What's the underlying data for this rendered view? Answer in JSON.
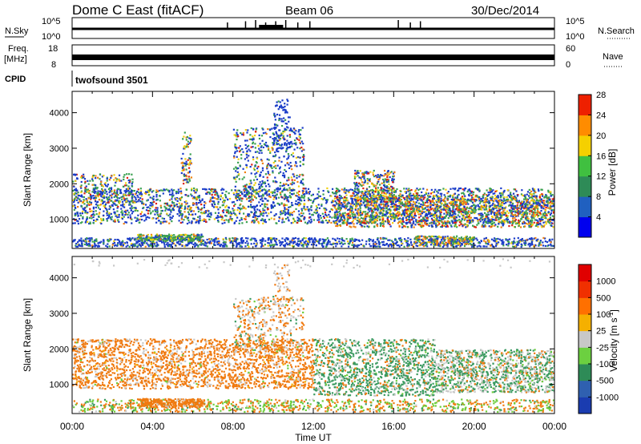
{
  "header": {
    "title": "Dome C East (fitACF)",
    "beam": "Beam 06",
    "date": "30/Dec/2014"
  },
  "nsky_panel": {
    "left_label": "N.Sky",
    "left_ticks": [
      "10^5",
      "10^0"
    ],
    "right_label": "N.Search",
    "right_ticks": [
      "10^5",
      "10^0"
    ]
  },
  "freq_panel": {
    "left_label_1": "Freq.",
    "left_label_2": "[MHz]",
    "left_ticks": [
      "18",
      "8"
    ],
    "right_label": "Nave",
    "right_ticks": [
      "60",
      "0"
    ]
  },
  "cpid": {
    "label": "CPID",
    "value": "twofsound 3501"
  },
  "chart_data": [
    {
      "type": "heatmap",
      "title": "",
      "xlabel": "Time UT",
      "ylabel": "Slant Range [km]",
      "xlim": [
        0,
        24
      ],
      "ylim": [
        180,
        4600
      ],
      "x_tick_labels": [
        "00:00",
        "04:00",
        "08:00",
        "12:00",
        "16:00",
        "20:00",
        "00:00"
      ],
      "y_ticks": [
        1000,
        2000,
        3000,
        4000
      ],
      "colorbar": {
        "label": "Power [dB]",
        "ticks": [
          4,
          8,
          12,
          16,
          20,
          24,
          28
        ],
        "colors": [
          "#0000ee",
          "#2060c0",
          "#2e8b57",
          "#40c040",
          "#f5d000",
          "#ff8c00",
          "#ee2000"
        ]
      }
    },
    {
      "type": "heatmap",
      "title": "",
      "xlabel": "Time UT",
      "ylabel": "Slant Range [km]",
      "xlim": [
        0,
        24
      ],
      "ylim": [
        180,
        4600
      ],
      "x_tick_labels": [
        "00:00",
        "04:00",
        "08:00",
        "12:00",
        "16:00",
        "20:00",
        "00:00"
      ],
      "y_ticks": [
        1000,
        2000,
        3000,
        4000
      ],
      "colorbar": {
        "label": "Velocity [m s",
        "label_sup": "-1",
        "label_end": "]",
        "ticks": [
          "1000",
          "500",
          "100",
          "25",
          "-25",
          "-100",
          "-500",
          "-1000"
        ],
        "colors": [
          "#1a3cb0",
          "#2f60b0",
          "#2e8b57",
          "#6cd040",
          "#c8c8c8",
          "#f5b000",
          "#ff7000",
          "#f03000",
          "#e00000"
        ]
      }
    }
  ],
  "colors": {
    "power_blue": "#1a3cc8",
    "power_green": "#3aa050",
    "power_orange": "#f08010",
    "power_red": "#e02010",
    "vel_orange": "#f07a10",
    "vel_green": "#3a9a60",
    "vel_grey": "#c8c8c8",
    "vel_lightgreen": "#6ccc3a"
  }
}
